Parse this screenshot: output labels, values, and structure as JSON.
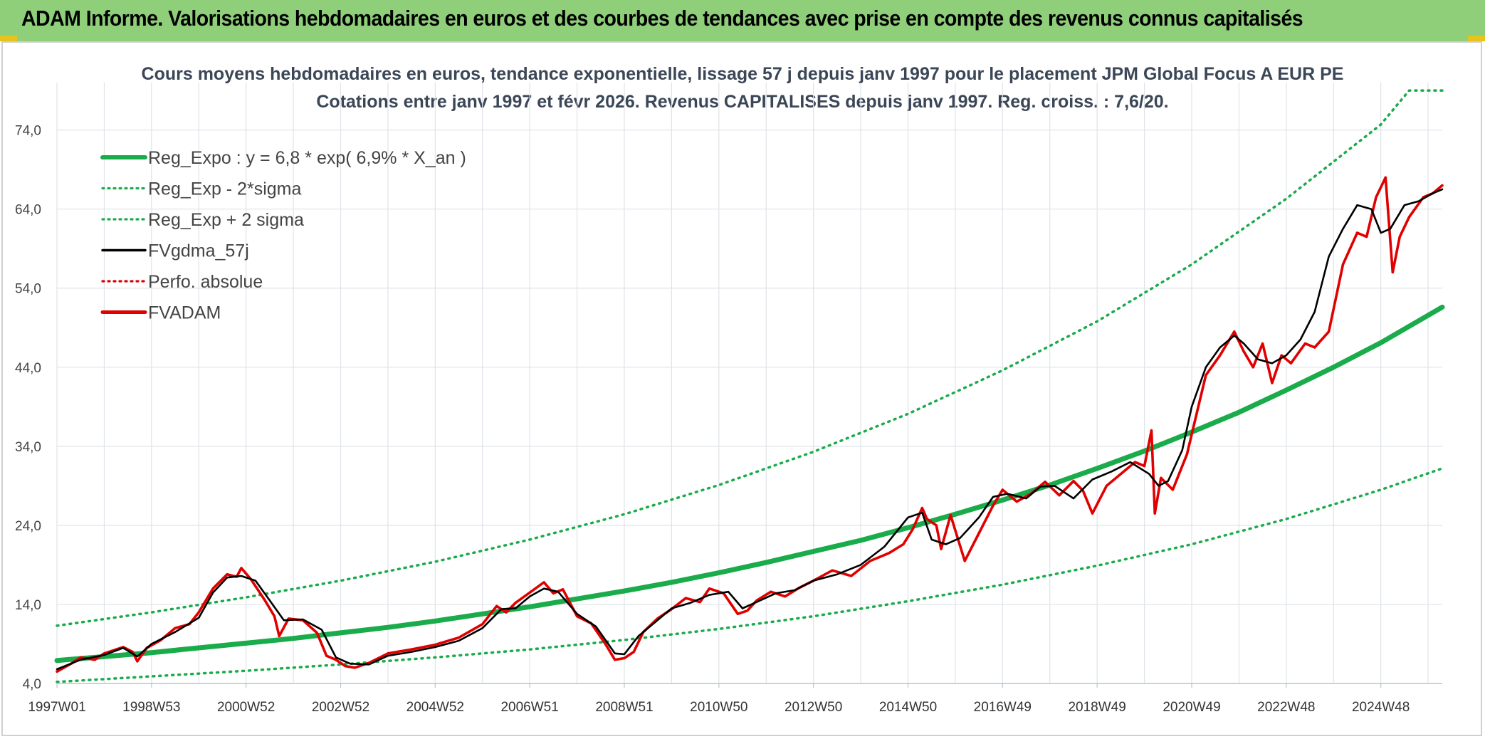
{
  "header": {
    "title": "ADAM Informe. Valorisations hebdomadaires en euros et des courbes de tendances avec prise en compte des revenus connus capitalisés"
  },
  "chart_data": {
    "type": "line",
    "title": "Cours moyens hebdomadaires en euros, tendance exponentielle, lissage 57 j depuis janv 1997 pour le placement JPM Global Focus A EUR PE",
    "subtitle": "Cotations entre janv 1997 et févr 2026. Revenus CAPITALISES depuis janv 1997. Reg. croiss. : 7,6/20.",
    "xlabel": "",
    "ylabel": "",
    "ylim": [
      4,
      80
    ],
    "yticks": [
      4.0,
      14.0,
      24.0,
      34.0,
      44.0,
      54.0,
      64.0,
      74.0
    ],
    "ytick_labels": [
      "4,0",
      "14,0",
      "24,0",
      "34,0",
      "44,0",
      "54,0",
      "64,0",
      "74,0"
    ],
    "x_tick_labels": [
      "1997W01",
      "1998W53",
      "2000W52",
      "2002W52",
      "2004W52",
      "2006W51",
      "2008W51",
      "2010W50",
      "2012W50",
      "2014W50",
      "2016W49",
      "2018W49",
      "2020W49",
      "2022W48",
      "2024W48"
    ],
    "x_tick_years": [
      1997.0,
      1999.0,
      2001.0,
      2003.0,
      2005.0,
      2007.0,
      2009.0,
      2011.0,
      2013.0,
      2015.0,
      2017.0,
      2019.0,
      2021.0,
      2023.0,
      2025.0
    ],
    "xlim": [
      1997.0,
      2026.3
    ],
    "grid": true,
    "legend_position": "top-left",
    "legend": [
      {
        "label": "Reg_Expo : y = 6,8 * exp( 6,9% *  X_an )",
        "color": "#1aab4b",
        "style": "solid-thick"
      },
      {
        "label": "Reg_Exp - 2*sigma",
        "color": "#1aab4b",
        "style": "dotted"
      },
      {
        "label": "Reg_Exp + 2 sigma",
        "color": "#1aab4b",
        "style": "dotted"
      },
      {
        "label": "FVgdma_57j",
        "color": "#000000",
        "style": "solid"
      },
      {
        "label": "Perfo. absolue",
        "color": "#e00000",
        "style": "dotted"
      },
      {
        "label": "FVADAM",
        "color": "#e00000",
        "style": "solid-thick"
      }
    ],
    "series": [
      {
        "name": "Reg_Expo : y = 6,8 * exp( 6,9% *  X_an )",
        "color": "#1aab4b",
        "x": [
          1997,
          1998,
          1999,
          2000,
          2001,
          2002,
          2003,
          2004,
          2005,
          2006,
          2007,
          2008,
          2009,
          2010,
          2011,
          2012,
          2013,
          2014,
          2015,
          2016,
          2017,
          2018,
          2019,
          2020,
          2021,
          2022,
          2023,
          2024,
          2025,
          2026.3
        ],
        "y": [
          6.9,
          7.4,
          7.9,
          8.5,
          9.1,
          9.7,
          10.4,
          11.1,
          11.9,
          12.8,
          13.7,
          14.7,
          15.7,
          16.8,
          18.0,
          19.3,
          20.7,
          22.1,
          23.7,
          25.4,
          27.2,
          29.1,
          31.2,
          33.4,
          35.8,
          38.3,
          41.1,
          44.0,
          47.1,
          51.6
        ]
      },
      {
        "name": "Reg_Exp - 2*sigma",
        "color": "#1aab4b",
        "x": [
          1997,
          1999,
          2001,
          2003,
          2005,
          2007,
          2009,
          2011,
          2013,
          2015,
          2017,
          2019,
          2021,
          2023,
          2025,
          2026.3
        ],
        "y": [
          4.2,
          4.9,
          5.6,
          6.4,
          7.3,
          8.3,
          9.5,
          10.9,
          12.5,
          14.4,
          16.5,
          18.9,
          21.6,
          24.8,
          28.5,
          31.2
        ]
      },
      {
        "name": "Reg_Exp + 2 sigma",
        "color": "#1aab4b",
        "x": [
          1997,
          1999,
          2001,
          2003,
          2005,
          2007,
          2009,
          2011,
          2013,
          2015,
          2017,
          2019,
          2021,
          2023,
          2025,
          2025.6,
          2026.3
        ],
        "y": [
          11.3,
          13.0,
          14.9,
          17.0,
          19.4,
          22.2,
          25.4,
          29.1,
          33.3,
          38.1,
          43.6,
          49.8,
          57.0,
          65.3,
          74.7,
          79.0,
          79.0
        ]
      },
      {
        "name": "FVgdma_57j",
        "color": "#000000",
        "x": [
          1997.0,
          1997.5,
          1998.0,
          1998.4,
          1998.7,
          1999.0,
          1999.5,
          2000.0,
          2000.3,
          2000.6,
          2000.9,
          2001.2,
          2001.5,
          2001.8,
          2002.2,
          2002.6,
          2002.9,
          2003.2,
          2003.6,
          2004.0,
          2004.5,
          2005.0,
          2005.5,
          2006.0,
          2006.4,
          2006.7,
          2007.0,
          2007.3,
          2007.6,
          2008.0,
          2008.4,
          2008.8,
          2009.0,
          2009.3,
          2009.7,
          2010.0,
          2010.4,
          2010.8,
          2011.2,
          2011.5,
          2011.8,
          2012.2,
          2012.6,
          2013.0,
          2013.5,
          2014.0,
          2014.5,
          2015.0,
          2015.3,
          2015.5,
          2015.8,
          2016.1,
          2016.5,
          2016.8,
          2017.1,
          2017.5,
          2017.8,
          2018.1,
          2018.5,
          2018.9,
          2019.3,
          2019.7,
          2020.1,
          2020.3,
          2020.5,
          2020.8,
          2021.0,
          2021.3,
          2021.6,
          2021.9,
          2022.1,
          2022.4,
          2022.7,
          2023.0,
          2023.3,
          2023.6,
          2023.9,
          2024.2,
          2024.5,
          2024.8,
          2025.0,
          2025.2,
          2025.5,
          2025.8,
          2026.1,
          2026.3
        ],
        "y": [
          5.8,
          7.0,
          7.6,
          8.5,
          7.4,
          9.0,
          10.5,
          12.3,
          15.5,
          17.4,
          17.6,
          17.0,
          14.5,
          12.0,
          12.1,
          10.8,
          7.3,
          6.5,
          6.4,
          7.5,
          8.0,
          8.6,
          9.4,
          11.0,
          13.4,
          13.5,
          15.0,
          16.0,
          15.6,
          12.8,
          11.2,
          7.8,
          7.7,
          10.0,
          12.0,
          13.5,
          14.2,
          15.2,
          15.6,
          13.5,
          14.3,
          15.4,
          15.8,
          17.0,
          17.8,
          19.0,
          21.3,
          25.0,
          25.6,
          22.2,
          21.6,
          22.4,
          25.0,
          27.6,
          28.0,
          27.4,
          28.9,
          29.0,
          27.4,
          29.8,
          30.8,
          32.0,
          30.5,
          29.0,
          29.6,
          33.5,
          39.0,
          44.0,
          46.5,
          48.0,
          47.0,
          45.0,
          44.5,
          45.5,
          47.5,
          51.0,
          58.0,
          61.5,
          64.5,
          64.0,
          61.0,
          61.5,
          64.5,
          65.0,
          66.0,
          66.5
        ]
      },
      {
        "name": "FVADAM",
        "color": "#e00000",
        "x": [
          1997.0,
          1997.3,
          1997.5,
          1997.8,
          1998.0,
          1998.4,
          1998.6,
          1998.7,
          1998.9,
          1999.2,
          1999.5,
          1999.8,
          2000.0,
          2000.3,
          2000.6,
          2000.8,
          2000.9,
          2001.1,
          2001.4,
          2001.6,
          2001.7,
          2001.9,
          2002.2,
          2002.5,
          2002.7,
          2002.9,
          2003.1,
          2003.3,
          2003.6,
          2004.0,
          2004.5,
          2005.0,
          2005.5,
          2006.0,
          2006.3,
          2006.5,
          2006.7,
          2007.0,
          2007.3,
          2007.5,
          2007.7,
          2008.0,
          2008.3,
          2008.6,
          2008.8,
          2009.0,
          2009.2,
          2009.4,
          2009.7,
          2010.0,
          2010.3,
          2010.6,
          2010.8,
          2011.1,
          2011.4,
          2011.6,
          2011.8,
          2012.1,
          2012.4,
          2012.7,
          2013.0,
          2013.4,
          2013.8,
          2014.2,
          2014.6,
          2014.9,
          2015.1,
          2015.3,
          2015.4,
          2015.6,
          2015.7,
          2015.9,
          2016.2,
          2016.5,
          2016.8,
          2017.0,
          2017.3,
          2017.6,
          2017.9,
          2018.2,
          2018.5,
          2018.7,
          2018.9,
          2019.2,
          2019.5,
          2019.8,
          2020.0,
          2020.15,
          2020.22,
          2020.35,
          2020.6,
          2020.9,
          2021.1,
          2021.3,
          2021.6,
          2021.9,
          2022.1,
          2022.3,
          2022.5,
          2022.7,
          2022.9,
          2023.1,
          2023.4,
          2023.6,
          2023.9,
          2024.2,
          2024.5,
          2024.7,
          2024.9,
          2025.1,
          2025.25,
          2025.4,
          2025.6,
          2025.9,
          2026.1,
          2026.3
        ],
        "y": [
          5.5,
          6.5,
          7.3,
          7.0,
          7.8,
          8.6,
          8.0,
          6.8,
          8.5,
          9.5,
          11.0,
          11.5,
          13.0,
          16.0,
          17.8,
          17.5,
          18.6,
          17.2,
          14.5,
          12.5,
          10.0,
          12.2,
          12.0,
          10.4,
          7.5,
          7.0,
          6.2,
          6.0,
          6.6,
          7.8,
          8.3,
          8.9,
          9.8,
          11.5,
          13.8,
          13.0,
          14.2,
          15.5,
          16.8,
          15.4,
          15.9,
          12.5,
          11.6,
          9.0,
          7.0,
          7.2,
          8.0,
          10.5,
          12.2,
          13.4,
          14.8,
          14.3,
          16.0,
          15.4,
          12.8,
          13.2,
          14.5,
          15.6,
          15.0,
          16.1,
          17.0,
          18.3,
          17.6,
          19.5,
          20.5,
          21.6,
          23.5,
          26.2,
          24.8,
          24.0,
          21.0,
          25.3,
          19.5,
          23.0,
          26.5,
          28.5,
          27.0,
          28.0,
          29.5,
          27.8,
          29.6,
          28.4,
          25.5,
          29.0,
          30.5,
          32.0,
          31.5,
          36.0,
          25.5,
          30.0,
          28.5,
          33.0,
          38.0,
          43.0,
          45.5,
          48.5,
          46.0,
          44.0,
          47.0,
          42.0,
          45.5,
          44.5,
          47.0,
          46.5,
          48.5,
          57.0,
          61.0,
          60.5,
          65.5,
          68.0,
          56.0,
          60.5,
          63.0,
          65.5,
          66.0,
          67.0
        ]
      }
    ]
  }
}
